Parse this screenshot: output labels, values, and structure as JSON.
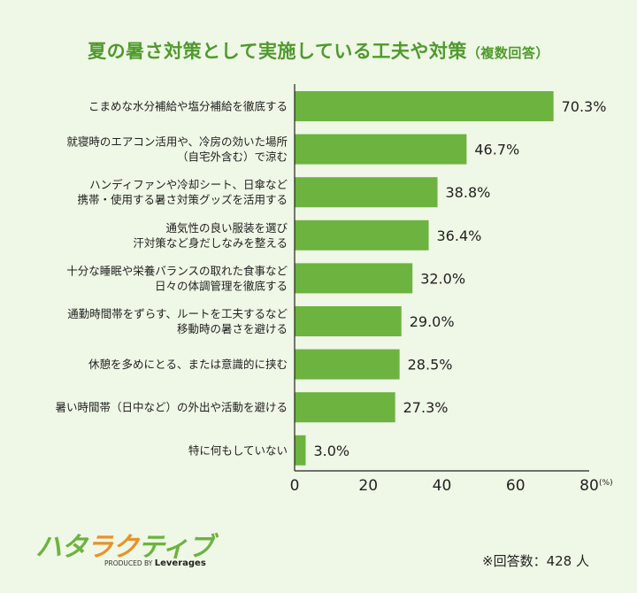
{
  "title": {
    "main": "夏の暑さ対策として実施している工夫や対策",
    "sub": "（複数回答）"
  },
  "chart_data": {
    "type": "bar",
    "orientation": "horizontal",
    "title": "夏の暑さ対策として実施している工夫や対策（複数回答）",
    "categories": [
      [
        "こまめな水分補給や塩分補給を徹底する"
      ],
      [
        "就寝時のエアコン活用や、冷房の効いた場所",
        "（自宅外含む）で涼む"
      ],
      [
        "ハンディファンや冷却シート、日傘など",
        "携帯・使用する暑さ対策グッズを活用する"
      ],
      [
        "通気性の良い服装を選び",
        "汗対策など身だしなみを整える"
      ],
      [
        "十分な睡眠や栄養バランスの取れた食事など",
        "日々の体調管理を徹底する"
      ],
      [
        "通勤時間帯をずらす、ルートを工夫するなど",
        "移動時の暑さを避ける"
      ],
      [
        "休憩を多めにとる、または意識的に挟む"
      ],
      [
        "暑い時間帯（日中など）の外出や活動を避ける"
      ],
      [
        "特に何もしていない"
      ]
    ],
    "values": [
      70.3,
      46.7,
      38.8,
      36.4,
      32.0,
      29.0,
      28.5,
      27.3,
      3.0
    ],
    "value_labels": [
      "70.3%",
      "46.7%",
      "38.8%",
      "36.4%",
      "32.0%",
      "29.0%",
      "28.5%",
      "27.3%",
      "3.0%"
    ],
    "xlim": [
      0,
      80
    ],
    "xticks": [
      "0",
      "20",
      "40",
      "60",
      "80"
    ],
    "xticks_values": [
      0,
      20,
      40,
      60,
      80
    ],
    "xunit": "(%)",
    "bar_color": "#6cb33f",
    "grid": false
  },
  "logo": {
    "text": "ハタラクティブ",
    "produced_by": "PRODUCED BY",
    "brand": "Leverages"
  },
  "note": "※回答数：428 人"
}
